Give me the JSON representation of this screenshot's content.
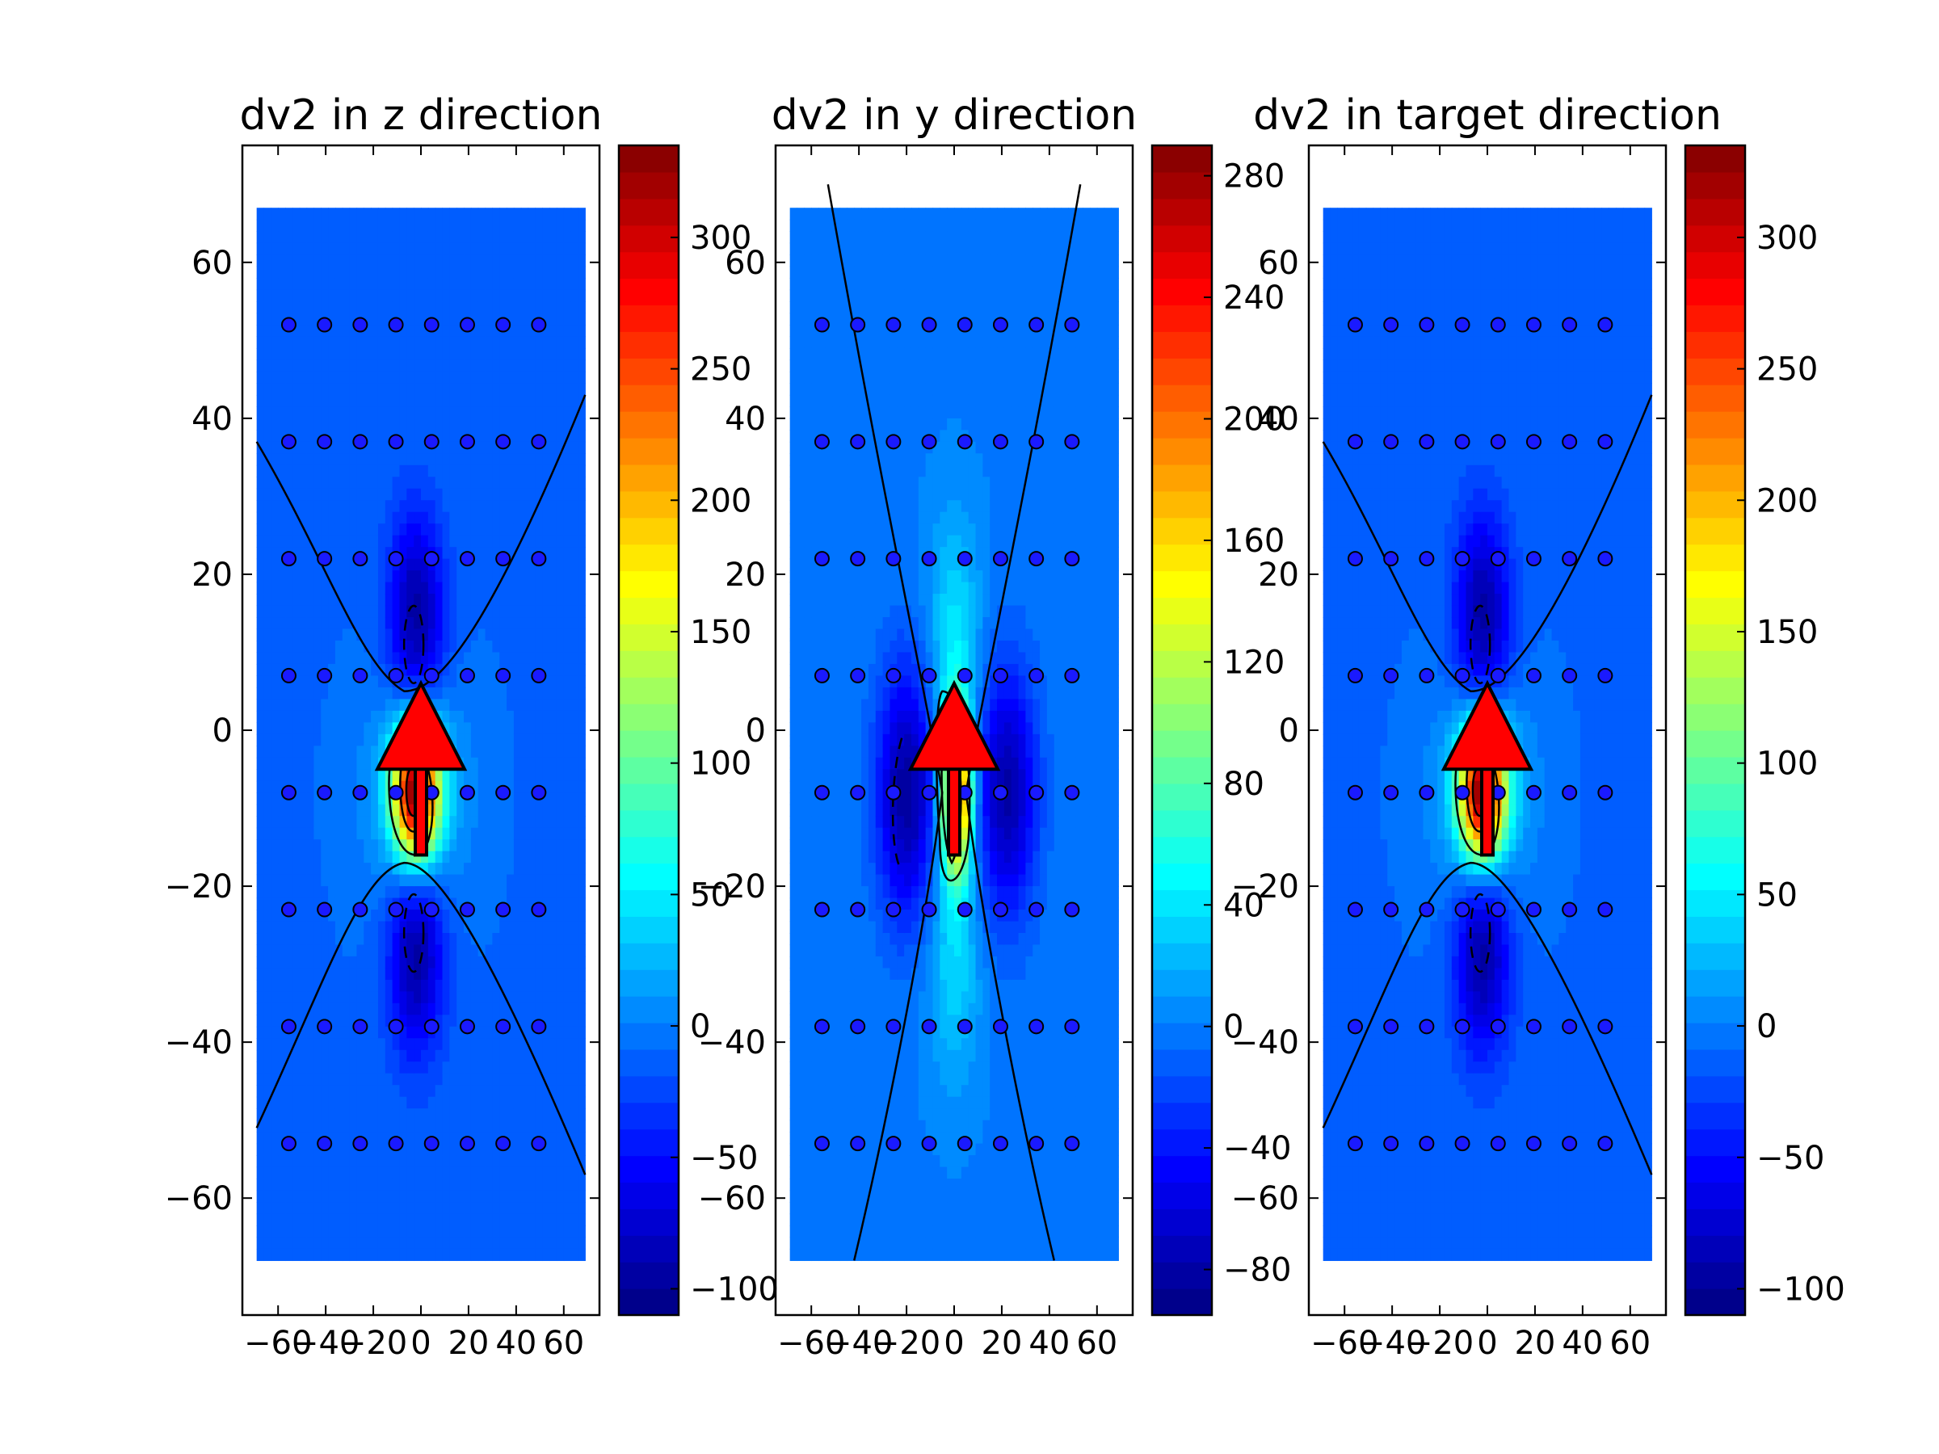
{
  "figure": {
    "background": "#ffffff"
  },
  "chart_data": [
    {
      "type": "heatmap",
      "title": "dv2 in z direction",
      "variant": "z",
      "xlim": [
        -75,
        75
      ],
      "ylim": [
        -75,
        75
      ],
      "x_ticks": [
        -60,
        -40,
        -20,
        0,
        20,
        40,
        60
      ],
      "x_tick_labels": [
        "−60",
        "−40",
        "−20",
        "0",
        "20",
        "40",
        "60"
      ],
      "y_ticks": [
        -60,
        -40,
        -20,
        0,
        20,
        40,
        60
      ],
      "y_tick_labels": [
        "−60",
        "−40",
        "−20",
        "0",
        "20",
        "40",
        "60"
      ],
      "field_extent": {
        "x": [
          -69,
          69
        ],
        "y": [
          -68,
          67
        ]
      },
      "grid_points": {
        "x": [
          -55.5,
          -40.5,
          -25.5,
          -10.5,
          4.5,
          19.5,
          34.5,
          49.5
        ],
        "y": [
          52,
          37,
          22,
          7,
          -8,
          -23,
          -38,
          -53
        ]
      },
      "arrow": {
        "x": 0,
        "y_start": -16,
        "y_end": 4,
        "color": "#ff0000"
      },
      "colorbar": {
        "colormap": "jet",
        "range": [
          -110,
          335
        ],
        "ticks": [
          -100,
          -50,
          0,
          50,
          100,
          150,
          200,
          250,
          300
        ],
        "tick_labels": [
          "−100",
          "−50",
          "0",
          "50",
          "100",
          "150",
          "200",
          "250",
          "300"
        ]
      }
    },
    {
      "type": "heatmap",
      "title": "dv2 in y direction",
      "variant": "y",
      "xlim": [
        -75,
        75
      ],
      "ylim": [
        -75,
        75
      ],
      "x_ticks": [
        -60,
        -40,
        -20,
        0,
        20,
        40,
        60
      ],
      "x_tick_labels": [
        "−60",
        "−40",
        "−20",
        "0",
        "20",
        "40",
        "60"
      ],
      "y_ticks": [
        -60,
        -40,
        -20,
        0,
        20,
        40,
        60
      ],
      "y_tick_labels": [
        "−60",
        "−40",
        "−20",
        "0",
        "20",
        "40",
        "60"
      ],
      "field_extent": {
        "x": [
          -69,
          69
        ],
        "y": [
          -68,
          67
        ]
      },
      "grid_points": {
        "x": [
          -55.5,
          -40.5,
          -25.5,
          -10.5,
          4.5,
          19.5,
          34.5,
          49.5
        ],
        "y": [
          52,
          37,
          22,
          7,
          -8,
          -23,
          -38,
          -53
        ]
      },
      "arrow": {
        "x": 0,
        "y_start": -16,
        "y_end": 4,
        "color": "#ff0000"
      },
      "colorbar": {
        "colormap": "jet",
        "range": [
          -95,
          290
        ],
        "ticks": [
          -80,
          -40,
          0,
          40,
          80,
          120,
          160,
          200,
          240,
          280
        ],
        "tick_labels": [
          "−80",
          "−40",
          "0",
          "40",
          "80",
          "120",
          "160",
          "200",
          "240",
          "280"
        ]
      }
    },
    {
      "type": "heatmap",
      "title": "dv2 in target direction",
      "variant": "z",
      "xlim": [
        -75,
        75
      ],
      "ylim": [
        -75,
        75
      ],
      "x_ticks": [
        -60,
        -40,
        -20,
        0,
        20,
        40,
        60
      ],
      "x_tick_labels": [
        "−60",
        "−40",
        "−20",
        "0",
        "20",
        "40",
        "60"
      ],
      "y_ticks": [
        -60,
        -40,
        -20,
        0,
        20,
        40,
        60
      ],
      "y_tick_labels": [
        "−60",
        "−40",
        "−20",
        "0",
        "20",
        "40",
        "60"
      ],
      "field_extent": {
        "x": [
          -69,
          69
        ],
        "y": [
          -68,
          67
        ]
      },
      "grid_points": {
        "x": [
          -55.5,
          -40.5,
          -25.5,
          -10.5,
          4.5,
          19.5,
          34.5,
          49.5
        ],
        "y": [
          52,
          37,
          22,
          7,
          -8,
          -23,
          -38,
          -53
        ]
      },
      "arrow": {
        "x": 0,
        "y_start": -16,
        "y_end": 4,
        "color": "#ff0000"
      },
      "colorbar": {
        "colormap": "jet",
        "range": [
          -110,
          335
        ],
        "ticks": [
          -100,
          -50,
          0,
          50,
          100,
          150,
          200,
          250,
          300
        ],
        "tick_labels": [
          "−100",
          "−50",
          "0",
          "50",
          "100",
          "150",
          "200",
          "250",
          "300"
        ]
      }
    }
  ]
}
